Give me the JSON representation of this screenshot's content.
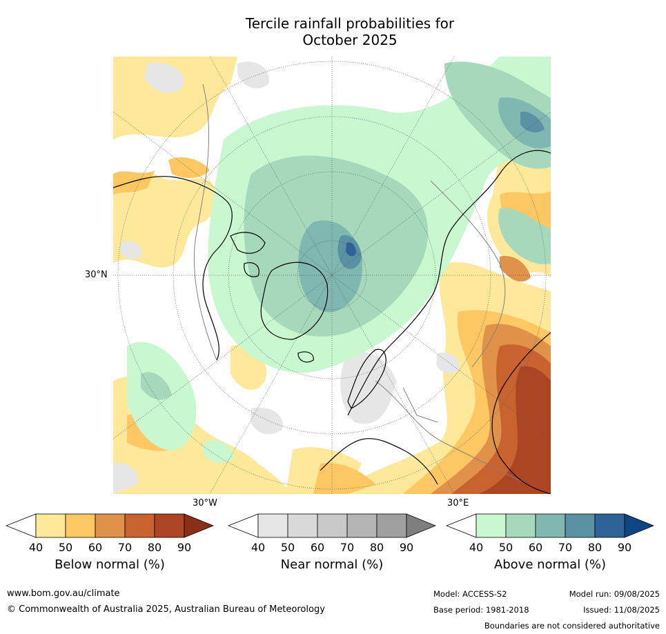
{
  "title": {
    "line1": "Tercile rainfall probabilities for",
    "line2": "October 2025"
  },
  "map": {
    "lat_label": "30°N",
    "lon_label_left": "30°W",
    "lon_label_right": "30°E"
  },
  "legends": [
    {
      "label": "Below normal (%)",
      "ticks": [
        "40",
        "50",
        "60",
        "70",
        "80",
        "90"
      ],
      "colors": [
        "#ffffff",
        "#fee89a",
        "#fdc863",
        "#e0914a",
        "#c8622e",
        "#ab4523",
        "#8b3018"
      ]
    },
    {
      "label": "Near normal (%)",
      "ticks": [
        "40",
        "50",
        "60",
        "70",
        "80",
        "90"
      ],
      "colors": [
        "#ffffff",
        "#e6e6e6",
        "#d9d9d9",
        "#c9c9c9",
        "#b5b5b5",
        "#a0a0a0",
        "#7f7f7f"
      ]
    },
    {
      "label": "Above normal (%)",
      "ticks": [
        "40",
        "50",
        "60",
        "70",
        "80",
        "90"
      ],
      "colors": [
        "#ffffff",
        "#c9f7d0",
        "#a6d9bb",
        "#80b7b0",
        "#5a91a3",
        "#2f6397",
        "#0f4583"
      ]
    }
  ],
  "footer": {
    "url": "www.bom.gov.au/climate",
    "copyright": "© Commonwealth of Australia 2025, Australian Bureau of Meteorology",
    "model": "Model: ACCESS-S2",
    "base_period": "Base period: 1981-2018",
    "model_run": "Model run: 09/08/2025",
    "issued": "Issued: 11/08/2025",
    "disclaimer": "Boundaries are not considered authoritative"
  }
}
